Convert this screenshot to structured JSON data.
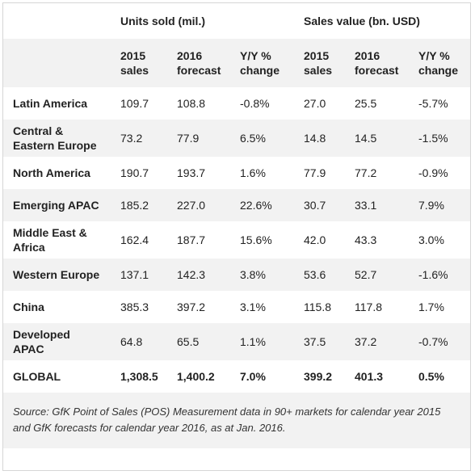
{
  "header": {
    "groups": [
      {
        "label": "Units sold (mil.)"
      },
      {
        "label": "Sales value (bn. USD)"
      }
    ],
    "columns": [
      {
        "line1": "2015",
        "line2": "sales"
      },
      {
        "line1": "2016",
        "line2": "forecast"
      },
      {
        "line1": "Y/Y %",
        "line2": "change"
      },
      {
        "line1": "2015",
        "line2": "sales"
      },
      {
        "line1": "2016",
        "line2": "forecast"
      },
      {
        "line1": "Y/Y %",
        "line2": "change"
      }
    ]
  },
  "rows": [
    {
      "region": [
        "Latin America"
      ],
      "values": [
        "109.7",
        "108.8",
        "-0.8%",
        "27.0",
        "25.5",
        "-5.7%"
      ]
    },
    {
      "region": [
        "Central &",
        "Eastern Europe"
      ],
      "values": [
        "73.2",
        "77.9",
        "6.5%",
        "14.8",
        "14.5",
        "-1.5%"
      ]
    },
    {
      "region": [
        "North America"
      ],
      "values": [
        "190.7",
        "193.7",
        "1.6%",
        "77.9",
        "77.2",
        "-0.9%"
      ]
    },
    {
      "region": [
        "Emerging APAC"
      ],
      "values": [
        "185.2",
        "227.0",
        "22.6%",
        "30.7",
        "33.1",
        "7.9%"
      ]
    },
    {
      "region": [
        "Middle East &",
        "Africa"
      ],
      "values": [
        "162.4",
        "187.7",
        "15.6%",
        "42.0",
        "43.3",
        "3.0%"
      ]
    },
    {
      "region": [
        "Western Europe"
      ],
      "values": [
        "137.1",
        "142.3",
        "3.8%",
        "53.6",
        "52.7",
        "-1.6%"
      ]
    },
    {
      "region": [
        "China"
      ],
      "values": [
        "385.3",
        "397.2",
        "3.1%",
        "115.8",
        "117.8",
        "1.7%"
      ]
    },
    {
      "region": [
        "Developed",
        "APAC"
      ],
      "values": [
        "64.8",
        "65.5",
        "1.1%",
        "37.5",
        "37.2",
        "-0.7%"
      ]
    }
  ],
  "total": {
    "region": "GLOBAL",
    "values": [
      "1,308.5",
      "1,400.2",
      "7.0%",
      "399.2",
      "401.3",
      "0.5%"
    ]
  },
  "source": {
    "line1": "Source: GfK Point of Sales (POS) Measurement data in 90+ markets for calendar year 2015",
    "line2": "and GfK forecasts for calendar year 2016, as at Jan. 2016."
  },
  "colors": {
    "shade": "#f2f2f2",
    "border": "#d6d6d6",
    "text": "#222222"
  }
}
